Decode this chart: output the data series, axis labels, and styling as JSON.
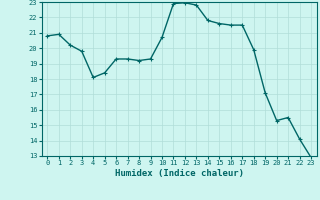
{
  "x": [
    0,
    1,
    2,
    3,
    4,
    5,
    6,
    7,
    8,
    9,
    10,
    11,
    12,
    13,
    14,
    15,
    16,
    17,
    18,
    19,
    20,
    21,
    22,
    23
  ],
  "y": [
    20.8,
    20.9,
    20.2,
    19.8,
    18.1,
    18.4,
    19.3,
    19.3,
    19.2,
    19.3,
    20.7,
    22.9,
    22.95,
    22.8,
    21.8,
    21.6,
    21.5,
    21.5,
    19.9,
    17.1,
    15.3,
    15.5,
    14.1,
    12.9
  ],
  "line_color": "#006666",
  "marker_color": "#006666",
  "bg_color": "#cef5f0",
  "grid_color": "#b0ddd8",
  "xlabel": "Humidex (Indice chaleur)",
  "ylim": [
    13,
    23
  ],
  "xlim_min": -0.5,
  "xlim_max": 23.5,
  "yticks": [
    13,
    14,
    15,
    16,
    17,
    18,
    19,
    20,
    21,
    22,
    23
  ],
  "xticks": [
    0,
    1,
    2,
    3,
    4,
    5,
    6,
    7,
    8,
    9,
    10,
    11,
    12,
    13,
    14,
    15,
    16,
    17,
    18,
    19,
    20,
    21,
    22,
    23
  ],
  "tick_fontsize": 5,
  "label_fontsize": 6.5,
  "line_width": 1.0,
  "marker_size": 2.2
}
